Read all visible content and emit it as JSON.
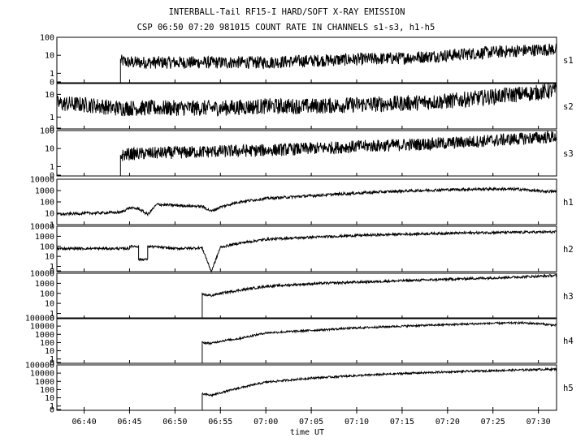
{
  "chart_data": {
    "type": "line",
    "title": "INTERBALL-Tail RF15-I HARD/SOFT X-RAY EMISSION",
    "subtitle": "CSP 06:50 07:20 981015  COUNT RATE IN CHANNELS s1-s3, h1-h5",
    "xlabel": "time UT",
    "x_ticks": [
      "06:40",
      "06:45",
      "06:50",
      "06:55",
      "07:00",
      "07:05",
      "07:10",
      "07:15",
      "07:20",
      "07:25",
      "07:30"
    ],
    "x_range": [
      "06:37",
      "07:32"
    ],
    "scale": "log",
    "grid": false,
    "panels": [
      {
        "name": "s1",
        "y_ticks": [
          "100",
          "10",
          "1",
          "0"
        ],
        "ylim": [
          0.3,
          100
        ],
        "series": [
          {
            "x": [
              "06:37",
              "06:44",
              "06:44",
              "06:45",
              "06:50",
              "06:55",
              "07:00",
              "07:05",
              "07:10",
              "07:15",
              "07:20",
              "07:25",
              "07:30",
              "07:32"
            ],
            "y": [
              0.3,
              0.3,
              5,
              4,
              4,
              4,
              4,
              5,
              6,
              7,
              10,
              15,
              20,
              22
            ]
          }
        ]
      },
      {
        "name": "s2",
        "y_ticks": [
          "10",
          "1",
          "0"
        ],
        "ylim": [
          0.3,
          30
        ],
        "series": [
          {
            "x": [
              "06:37",
              "06:40",
              "06:42",
              "06:43",
              "06:44",
              "06:50",
              "06:55",
              "07:00",
              "07:05",
              "07:10",
              "07:15",
              "07:20",
              "07:25",
              "07:30",
              "07:32"
            ],
            "y": [
              4,
              3.5,
              3,
              2.5,
              2.5,
              2.5,
              2.5,
              3,
              3,
              3.5,
              4,
              5,
              8,
              12,
              15
            ]
          }
        ]
      },
      {
        "name": "s3",
        "y_ticks": [
          "100",
          "10",
          "1",
          "0"
        ],
        "ylim": [
          0.3,
          100
        ],
        "series": [
          {
            "x": [
              "06:37",
              "06:44",
              "06:44",
              "06:45",
              "06:50",
              "06:55",
              "07:00",
              "07:05",
              "07:10",
              "07:15",
              "07:20",
              "07:25",
              "07:30",
              "07:32"
            ],
            "y": [
              0.3,
              0.3,
              4,
              5,
              6,
              7,
              8,
              10,
              13,
              16,
              20,
              28,
              40,
              45
            ]
          }
        ]
      },
      {
        "name": "h1",
        "y_ticks": [
          "10000",
          "1000",
          "100",
          "10",
          "1"
        ],
        "ylim": [
          1,
          10000
        ],
        "series": [
          {
            "x": [
              "06:37",
              "06:40",
              "06:44",
              "06:45",
              "06:46",
              "06:47",
              "06:48",
              "06:50",
              "06:53",
              "06:54",
              "06:55",
              "06:57",
              "07:00",
              "07:05",
              "07:10",
              "07:15",
              "07:20",
              "07:25",
              "07:28",
              "07:30",
              "07:32"
            ],
            "y": [
              8,
              10,
              12,
              30,
              25,
              8,
              60,
              50,
              40,
              15,
              35,
              100,
              200,
              350,
              600,
              900,
              1200,
              1400,
              1300,
              900,
              800
            ]
          }
        ]
      },
      {
        "name": "h2",
        "y_ticks": [
          "10000",
          "1000",
          "100",
          "10",
          "1",
          "0"
        ],
        "ylim": [
          0.3,
          10000
        ],
        "series": [
          {
            "x": [
              "06:37",
              "06:45",
              "06:45",
              "06:46",
              "06:46",
              "06:47",
              "06:47",
              "06:50",
              "06:53",
              "06:54",
              "06:55",
              "06:57",
              "07:00",
              "07:05",
              "07:10",
              "07:15",
              "07:20",
              "07:25",
              "07:30",
              "07:32"
            ],
            "y": [
              60,
              60,
              100,
              100,
              5,
              5,
              100,
              60,
              70,
              0.3,
              80,
              200,
              500,
              800,
              1200,
              1600,
              2000,
              2400,
              2600,
              2700
            ]
          }
        ]
      },
      {
        "name": "h3",
        "y_ticks": [
          "10000",
          "1000",
          "100",
          "10",
          "1",
          "0"
        ],
        "ylim": [
          0.3,
          10000
        ],
        "series": [
          {
            "x": [
              "06:37",
              "06:53",
              "06:53",
              "06:54",
              "06:55",
              "06:57",
              "07:00",
              "07:05",
              "07:10",
              "07:15",
              "07:20",
              "07:25",
              "07:30",
              "07:32"
            ],
            "y": [
              0.3,
              0.3,
              80,
              60,
              100,
              200,
              500,
              900,
              1300,
              1800,
              2500,
              3500,
              5000,
              6000
            ]
          }
        ]
      },
      {
        "name": "h4",
        "y_ticks": [
          "100000",
          "10000",
          "1000",
          "100",
          "10",
          "1",
          "0"
        ],
        "ylim": [
          0.3,
          100000
        ],
        "series": [
          {
            "x": [
              "06:37",
              "06:53",
              "06:53",
              "06:54",
              "06:55",
              "06:57",
              "07:00",
              "07:05",
              "07:10",
              "07:15",
              "07:20",
              "07:25",
              "07:28",
              "07:30",
              "07:32"
            ],
            "y": [
              0.3,
              0.3,
              100,
              80,
              150,
              300,
              1500,
              3000,
              6000,
              10000,
              15000,
              22000,
              25000,
              20000,
              12000
            ]
          }
        ]
      },
      {
        "name": "h5",
        "y_ticks": [
          "100000",
          "10000",
          "1000",
          "100",
          "10",
          "1",
          "0"
        ],
        "ylim": [
          0.3,
          100000
        ],
        "series": [
          {
            "x": [
              "06:37",
              "06:53",
              "06:53",
              "06:54",
              "06:55",
              "06:57",
              "07:00",
              "07:05",
              "07:10",
              "07:15",
              "07:20",
              "07:25",
              "07:30",
              "07:32"
            ],
            "y": [
              0.3,
              0.3,
              30,
              20,
              40,
              150,
              800,
              2500,
              5000,
              9000,
              14000,
              20000,
              28000,
              30000
            ]
          }
        ]
      }
    ]
  }
}
